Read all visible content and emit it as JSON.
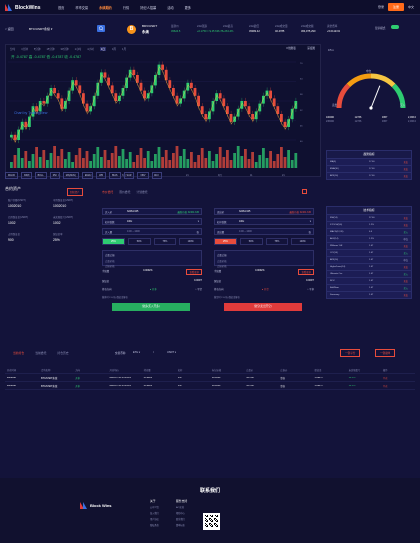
{
  "nav": {
    "brand": "BlockWins",
    "items": [
      "首页",
      "币币交易",
      "永续期约",
      "行情",
      "好纪人招募",
      "活动",
      "更多"
    ],
    "active_index": 2,
    "login": "登录",
    "register": "注册",
    "lang": "中文"
  },
  "ticker": {
    "back": "< 返回",
    "pair_select": "BTC/USDT永续 ▾",
    "coin_letter": "B",
    "pair": "BDV/USDT",
    "pair_label": "永续",
    "stats": [
      {
        "label": "最新价",
        "value": "45624.5",
        "color": "green"
      },
      {
        "label": "24H涨跌",
        "value": "+0.1750 = $ 45 636.78",
        "color": "green"
      },
      {
        "label": "24H最高",
        "value": "+28.14%",
        "color": "green"
      },
      {
        "label": "24H最低",
        "value": "45382.42"
      },
      {
        "label": "24H成交量",
        "value": "40.4785"
      },
      {
        "label": "24H成交额",
        "value": "364,975,290"
      },
      {
        "label": "资金费率",
        "value": "+5.01121%"
      }
    ],
    "mode_label": "显示模式",
    "depth_label": "深度",
    "pct_value": "0.5"
  },
  "chart": {
    "tabs": [
      "分时",
      "1分钟",
      "5分钟",
      "15分钟",
      "30分钟",
      "1小时",
      "4小时",
      "1日",
      "1周",
      "1月"
    ],
    "active_tab": 7,
    "right_labels": [
      "K线图表",
      "深度图"
    ],
    "ohlc_info": "开 -0.4787  高 -0.4787  低 -0.4787  收 -0.4787",
    "watermark": "Chart by TradingView",
    "x_ticks": [
      "7月",
      "11",
      "21",
      "8月",
      "11",
      "21",
      "9月",
      "11",
      "21"
    ],
    "indicators": [
      "MACD",
      "KDJ",
      "BOLL",
      "RSI",
      "MA(MAV)",
      "EMA",
      "WR",
      "BIAS",
      "SAR",
      "OBV",
      "CCI"
    ]
  },
  "chart_data": {
    "type": "candlestick",
    "candles_close": [
      42,
      40,
      44,
      47,
      45,
      49,
      53,
      51,
      55,
      54,
      57,
      60,
      58,
      56,
      52,
      55,
      59,
      63,
      61,
      58,
      54,
      51,
      53,
      57,
      62,
      66,
      64,
      61,
      58,
      55,
      57,
      60,
      64,
      67,
      65,
      62,
      59,
      56,
      58,
      61,
      65,
      69,
      67,
      63,
      60,
      57,
      54,
      56,
      59,
      62,
      60,
      57,
      53,
      50,
      48,
      51,
      55,
      58,
      56,
      53,
      50,
      47,
      49,
      52,
      55,
      53,
      50,
      48,
      51,
      54,
      57,
      59,
      56,
      53,
      50,
      47,
      45,
      48,
      52,
      55
    ],
    "ylim": [
      40,
      70
    ]
  },
  "gauge": {
    "value_pct": 62,
    "value_text": "62%",
    "ticks": [
      "卖出",
      "中立",
      "买入"
    ],
    "stats": [
      {
        "label": "100000",
        "value": "236000"
      },
      {
        "label": "12736",
        "value": "12736"
      },
      {
        "label": "4957",
        "value": "4957"
      },
      {
        "label": "2,036.0",
        "value": "2,036.0"
      }
    ]
  },
  "side_tables": {
    "t1": {
      "title": "趋势指标",
      "rows": [
        [
          "MA(5)",
          "17.00",
          "卖出"
        ],
        [
          "EMA(10)",
          "17.00",
          "卖出"
        ],
        [
          "ATR(14)",
          "17.00",
          "卖出"
        ]
      ]
    },
    "t2": {
      "title": "技术指标",
      "rows": [
        [
          "RSI(14)",
          "27.00",
          "卖出"
        ],
        [
          "STOCH(9,6)",
          "1.2%",
          "卖出"
        ],
        [
          "MACD(12,26)",
          "0.5",
          "买入"
        ],
        [
          "ADX(14)",
          "1.2%",
          "中立"
        ],
        [
          "Williams %R",
          "1.07",
          "卖出"
        ],
        [
          "CCI(14)",
          "1.07",
          "买入"
        ],
        [
          "ATR(14)",
          "1.07",
          "中立"
        ],
        [
          "Highs/Lows(14)",
          "1.07",
          "卖出"
        ],
        [
          "Ultimate Osc",
          "1.07",
          "买入"
        ],
        [
          "ROC",
          "1.07",
          "卖出"
        ],
        [
          "Bull/Bear",
          "1.07",
          "买入"
        ],
        [
          "Summary",
          "1.07",
          "卖出"
        ]
      ]
    }
  },
  "assets": {
    "title": "合约资产",
    "action": "划转资产",
    "items": [
      {
        "label": "账户余额(USDT)",
        "value": "1002010"
      },
      {
        "label": "可用保证金(USDT)",
        "value": "1002010"
      },
      {
        "label": "已用保证金(USDT)",
        "value": "1002"
      },
      {
        "label": "未实现盈亏(USDT)",
        "value": "1002"
      },
      {
        "label": "占用保证金",
        "value": "900"
      },
      {
        "label": "保证金率",
        "value": "25%"
      }
    ]
  },
  "order": {
    "tabs": [
      "市价委托",
      "限价委托",
      "计划委托"
    ],
    "active_tab": 0,
    "buy": {
      "price_label": "买入价",
      "price": "32464.345",
      "price_hint": "最新价格",
      "price_hint_val": "32464.345",
      "lev_label": "杠杆倍数",
      "lev": "100x",
      "amount_label": "买入量",
      "amount_ph": "0.00 ~ 1000",
      "unit": "张",
      "pcts": [
        "25%",
        "50%",
        "75%",
        "100%"
      ],
      "tp_label": "止盈止损",
      "tp_ph": "止盈价格",
      "sl_ph": "止损价格",
      "fee_label": "手续费",
      "fee": "0.0062%",
      "fee_btn": "查看更多",
      "margin_label": "保证金",
      "margin": "9.00DT",
      "hold_label": "持仓方向",
      "open": "开多",
      "close": "平空",
      "submit": "做多(买入开多)",
      "note": "做多时 1%可以保证金爆仓"
    },
    "sell": {
      "price_label": "卖出价",
      "price": "32464.345",
      "price_hint": "最新价格",
      "price_hint_val": "32464.345",
      "lev_label": "杠杆倍数",
      "lev": "100x",
      "amount_label": "卖出量",
      "amount_ph": "0.00 ~ 1000",
      "unit": "张",
      "pcts": [
        "25%",
        "50%",
        "75%",
        "100%"
      ],
      "tp_label": "止盈止损",
      "tp_ph": "止盈价格",
      "sl_ph": "止损价格",
      "fee_label": "手续费",
      "fee": "0.0062%",
      "fee_btn": "查看更多",
      "margin_label": "保证金",
      "margin": "9.00DT",
      "hold_label": "持仓方向",
      "open": "开空",
      "close": "平多",
      "submit": "做空(卖出开空)",
      "note": "做空时 1%可以保证金爆仓"
    }
  },
  "orders": {
    "tabs": [
      "当前持仓",
      "当前委托",
      "持仓历史"
    ],
    "active_tab": 0,
    "filter_label": "交易币种",
    "filter_coin": "ETH",
    "filter_quote": "USDT",
    "btn_close_all": "一键平仓",
    "btn_cancel_all": "一键撤单",
    "headers": [
      "开仓时间",
      "合约名称",
      "方向",
      "开仓均价",
      "持仓量",
      "杠杆",
      "标记价格",
      "止盈价",
      "止损价",
      "保证金",
      "未实现盈亏",
      "操作"
    ],
    "rows": [
      [
        "2808048",
        "BTC/USDT永续",
        "开多",
        "2020-07-13 15:24:24",
        "45.2226",
        "15x",
        "40.2226",
        "44.7627",
        "空仓",
        "1.099.77",
        "+2.1%",
        "平仓"
      ],
      [
        "2808048",
        "BTC/USDT永续",
        "开多",
        "2020-07-13 15:24:24",
        "45.2226",
        "15x",
        "40.2226",
        "44.7627",
        "空仓",
        "1.099.77",
        "+2.1%",
        "平仓"
      ]
    ]
  },
  "footer": {
    "title": "联系我们",
    "brand": "Block Wins",
    "col1_title": "关于",
    "col1_items": [
      "公司介绍",
      "加入我们",
      "用户协议",
      "隐私条款"
    ],
    "col2_title": "服务支持",
    "col2_items": [
      "API文档",
      "帮助中心",
      "联系我们",
      "费率标准"
    ]
  }
}
